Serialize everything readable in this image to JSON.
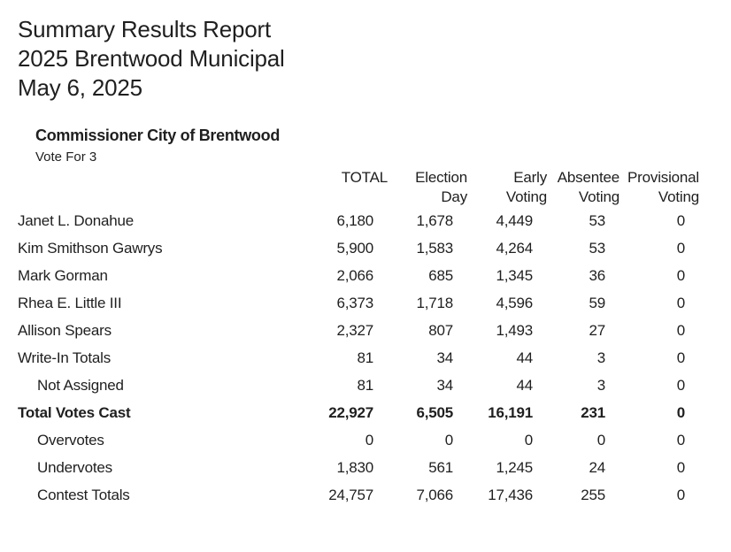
{
  "report": {
    "title_lines": [
      "Summary Results Report",
      "2025 Brentwood Municipal",
      "May 6, 2025"
    ],
    "contest": {
      "name": "Commissioner City of Brentwood",
      "vote_for": "Vote For 3"
    },
    "table": {
      "columns": [
        {
          "line1": "TOTAL",
          "line2": ""
        },
        {
          "line1": "Election",
          "line2": "Day"
        },
        {
          "line1": "Early",
          "line2": "Voting"
        },
        {
          "line1": "Absentee",
          "line2": "Voting"
        },
        {
          "line1": "Provisional",
          "line2": "Voting"
        }
      ],
      "rows": [
        {
          "label": "Janet L. Donahue",
          "indent": false,
          "bold": false,
          "values": [
            "6,180",
            "1,678",
            "4,449",
            "53",
            "0"
          ]
        },
        {
          "label": "Kim Smithson Gawrys",
          "indent": false,
          "bold": false,
          "values": [
            "5,900",
            "1,583",
            "4,264",
            "53",
            "0"
          ]
        },
        {
          "label": "Mark Gorman",
          "indent": false,
          "bold": false,
          "values": [
            "2,066",
            "685",
            "1,345",
            "36",
            "0"
          ]
        },
        {
          "label": "Rhea E. Little III",
          "indent": false,
          "bold": false,
          "values": [
            "6,373",
            "1,718",
            "4,596",
            "59",
            "0"
          ]
        },
        {
          "label": "Allison Spears",
          "indent": false,
          "bold": false,
          "values": [
            "2,327",
            "807",
            "1,493",
            "27",
            "0"
          ]
        },
        {
          "label": "Write-In Totals",
          "indent": false,
          "bold": false,
          "values": [
            "81",
            "34",
            "44",
            "3",
            "0"
          ]
        },
        {
          "label": "Not Assigned",
          "indent": true,
          "bold": false,
          "values": [
            "81",
            "34",
            "44",
            "3",
            "0"
          ]
        },
        {
          "label": "Total Votes Cast",
          "indent": false,
          "bold": true,
          "values": [
            "22,927",
            "6,505",
            "16,191",
            "231",
            "0"
          ]
        },
        {
          "label": "Overvotes",
          "indent": true,
          "bold": false,
          "values": [
            "0",
            "0",
            "0",
            "0",
            "0"
          ]
        },
        {
          "label": "Undervotes",
          "indent": true,
          "bold": false,
          "values": [
            "1,830",
            "561",
            "1,245",
            "24",
            "0"
          ]
        },
        {
          "label": "Contest Totals",
          "indent": true,
          "bold": false,
          "values": [
            "24,757",
            "7,066",
            "17,436",
            "255",
            "0"
          ]
        }
      ]
    },
    "colors": {
      "text": "#1f1f1f",
      "background": "#ffffff"
    }
  }
}
